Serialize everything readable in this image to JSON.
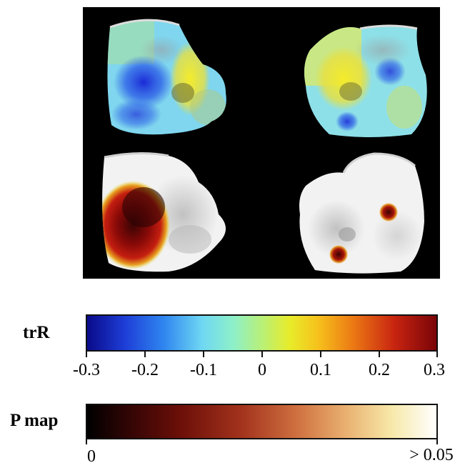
{
  "figure": {
    "panel_views": [
      "trR-map-left-view",
      "trR-map-right-view",
      "p-map-left-view",
      "p-map-right-view"
    ],
    "trR_colorbar": {
      "label": "trR",
      "tick_labels": [
        "-0.3",
        "-0.2",
        "-0.1",
        "0",
        "0.1",
        "0.2",
        "0.3"
      ],
      "range": [
        -0.3,
        0.3
      ],
      "colormap": [
        "#0a0a8a",
        "#2f86f0",
        "#6fd8f2",
        "#b8f078",
        "#e8ec2a",
        "#ec7a14",
        "#7a0408"
      ]
    },
    "p_colorbar": {
      "label": "P map",
      "min_label": "0",
      "max_label": "> 0.05",
      "colormap": [
        "#000000",
        "#6a0e08",
        "#cf7040",
        "#f7e8a8",
        "#ffffff"
      ]
    },
    "colors": {
      "background": "#000000",
      "surface_gray": "#f2f2f2"
    }
  }
}
